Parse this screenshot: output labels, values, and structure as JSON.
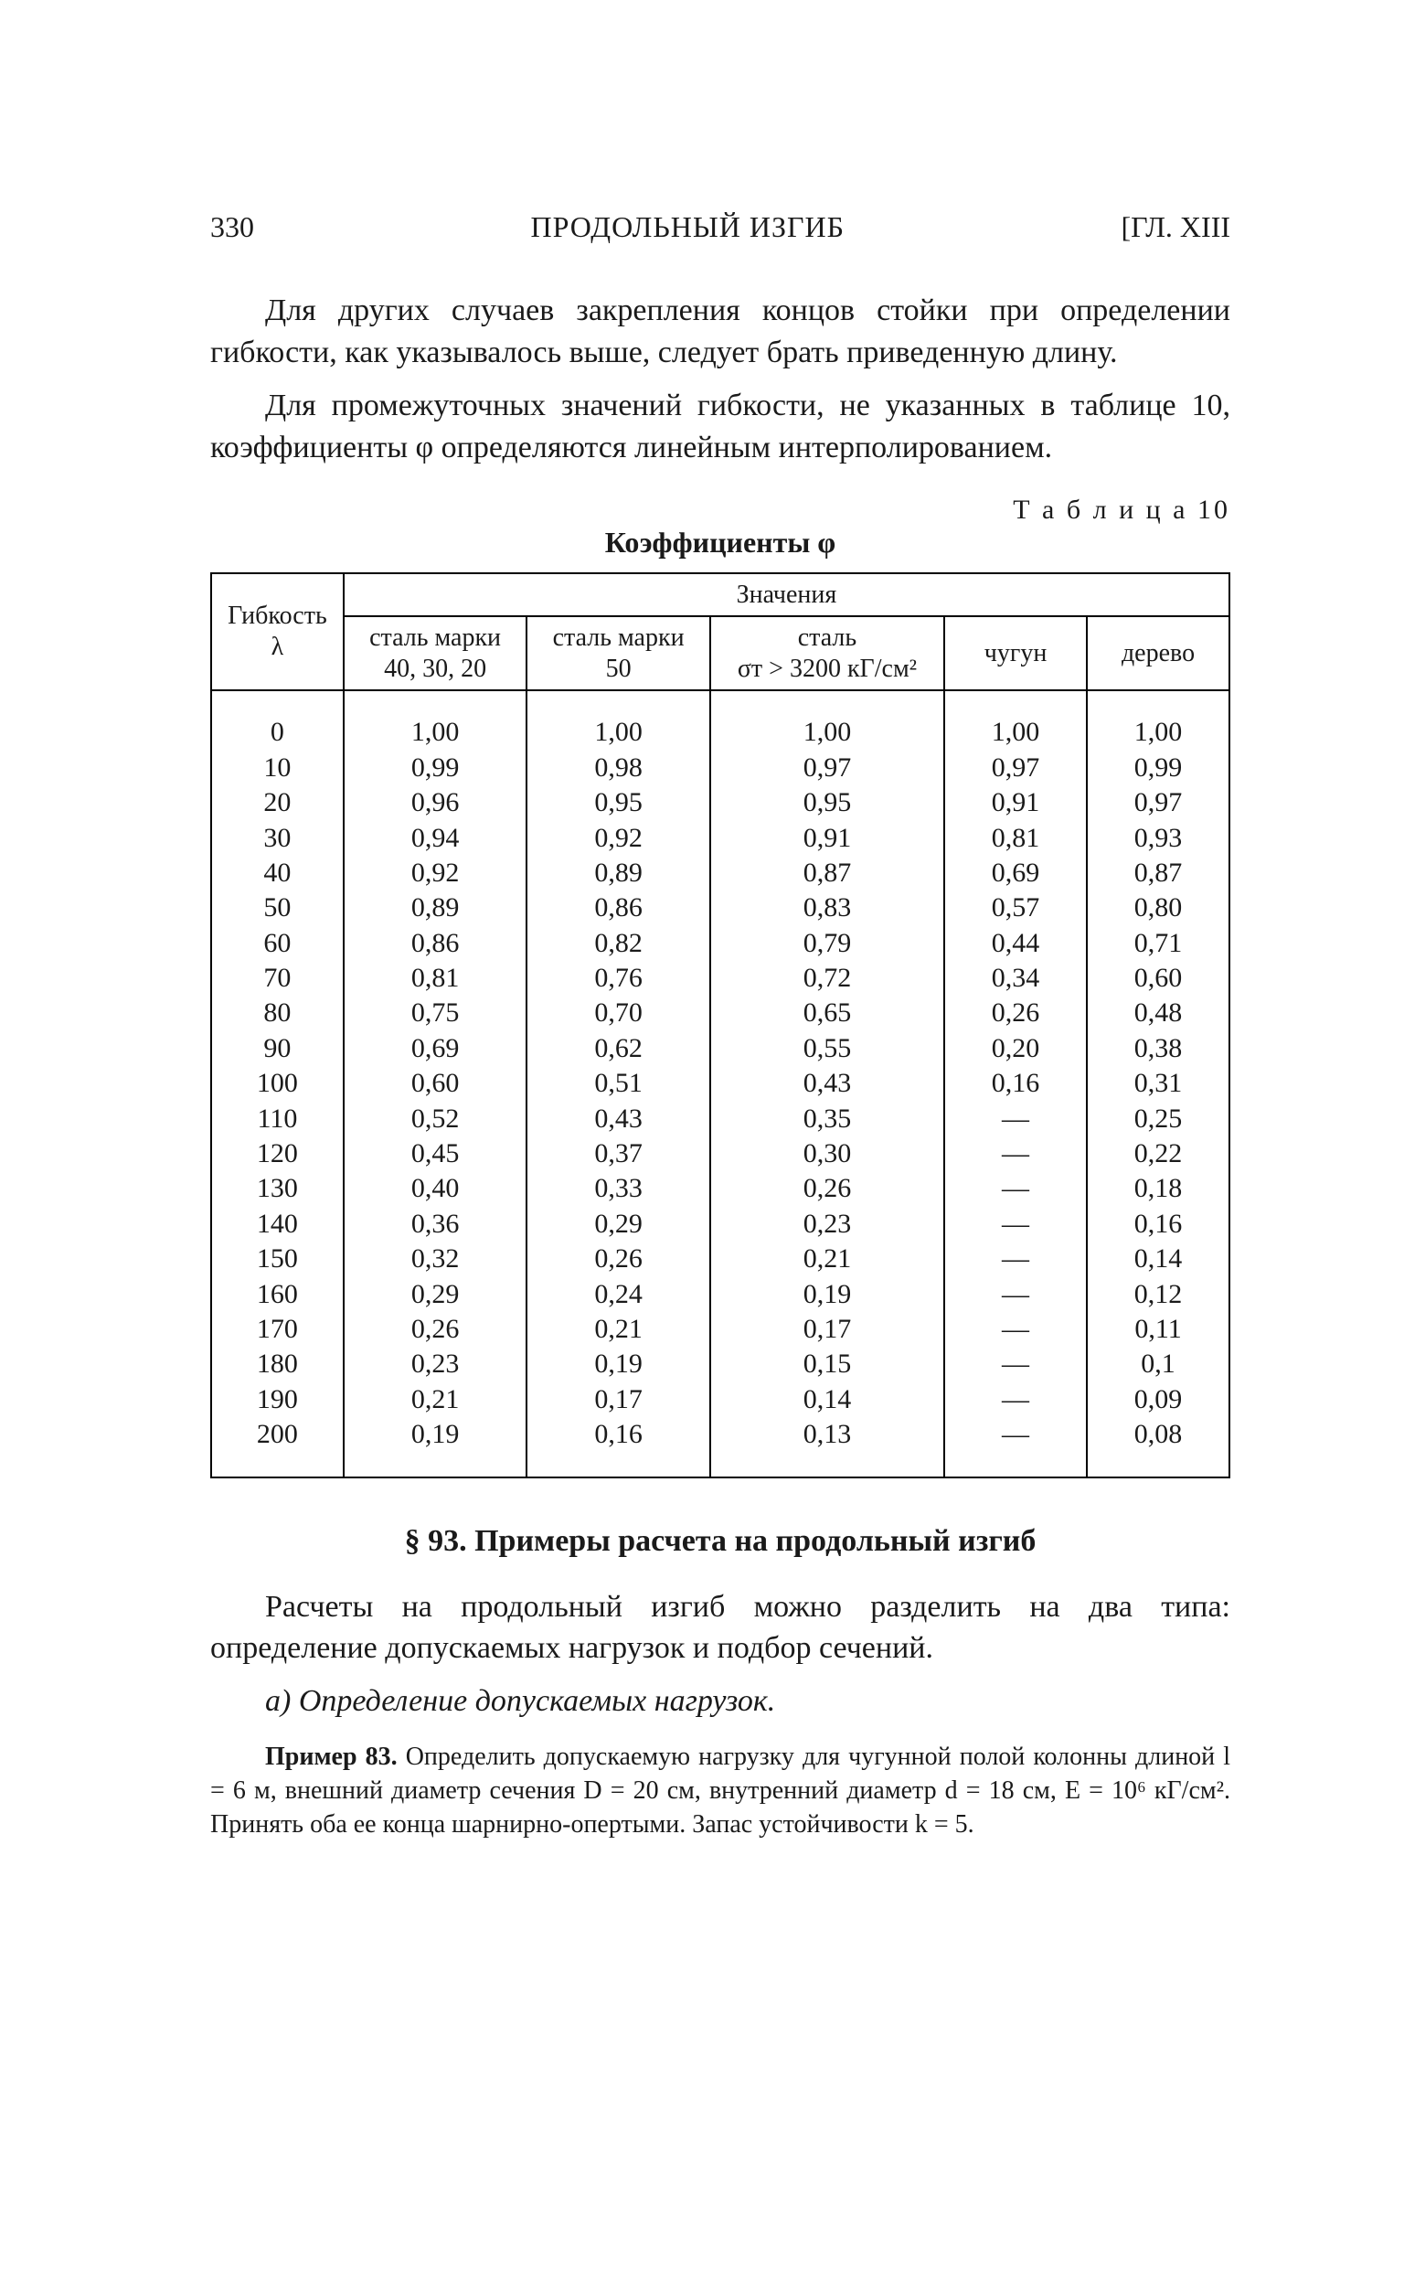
{
  "page": {
    "number": "330",
    "running_title": "ПРОДОЛЬНЫЙ ИЗГИБ",
    "chapter_mark": "[ГЛ. XIII"
  },
  "paragraphs": {
    "p1": "Для других случаев закрепления концов стойки при определении гибкости, как указывалось выше, следует брать приведенную длину.",
    "p2": "Для промежуточных значений гибкости, не указанных в таблице 10, коэффициенты φ определяются линейным интерполированием."
  },
  "table": {
    "label": "Т а б л и ц а 10",
    "caption": "Коэффициенты φ",
    "header_top": "Значения",
    "header_left": "Гибкость\nλ",
    "columns": [
      "сталь марки\n40, 30, 20",
      "сталь марки\n50",
      "сталь\nσт > 3200 кГ/см²",
      "чугун",
      "дерево"
    ],
    "lambda": [
      "0",
      "10",
      "20",
      "30",
      "40",
      "50",
      "60",
      "70",
      "80",
      "90",
      "100",
      "110",
      "120",
      "130",
      "140",
      "150",
      "160",
      "170",
      "180",
      "190",
      "200"
    ],
    "steel_40_30_20": [
      "1,00",
      "0,99",
      "0,96",
      "0,94",
      "0,92",
      "0,89",
      "0,86",
      "0,81",
      "0,75",
      "0,69",
      "0,60",
      "0,52",
      "0,45",
      "0,40",
      "0,36",
      "0,32",
      "0,29",
      "0,26",
      "0,23",
      "0,21",
      "0,19"
    ],
    "steel_50": [
      "1,00",
      "0,98",
      "0,95",
      "0,92",
      "0,89",
      "0,86",
      "0,82",
      "0,76",
      "0,70",
      "0,62",
      "0,51",
      "0,43",
      "0,37",
      "0,33",
      "0,29",
      "0,26",
      "0,24",
      "0,21",
      "0,19",
      "0,17",
      "0,16"
    ],
    "steel_gt3200": [
      "1,00",
      "0,97",
      "0,95",
      "0,91",
      "0,87",
      "0,83",
      "0,79",
      "0,72",
      "0,65",
      "0,55",
      "0,43",
      "0,35",
      "0,30",
      "0,26",
      "0,23",
      "0,21",
      "0,19",
      "0,17",
      "0,15",
      "0,14",
      "0,13"
    ],
    "cast_iron": [
      "1,00",
      "0,97",
      "0,91",
      "0,81",
      "0,69",
      "0,57",
      "0,44",
      "0,34",
      "0,26",
      "0,20",
      "0,16",
      "—",
      "—",
      "—",
      "—",
      "—",
      "—",
      "—",
      "—",
      "—",
      "—"
    ],
    "wood": [
      "1,00",
      "0,99",
      "0,97",
      "0,93",
      "0,87",
      "0,80",
      "0,71",
      "0,60",
      "0,48",
      "0,38",
      "0,31",
      "0,25",
      "0,22",
      "0,18",
      "0,16",
      "0,14",
      "0,12",
      "0,11",
      "0,1",
      "0,09",
      "0,08"
    ]
  },
  "section": {
    "title": "§ 93. Примеры расчета на продольный изгиб",
    "p1": "Расчеты на продольный изгиб можно разделить на два типа: определение допускаемых нагрузок и подбор сечений.",
    "sub_a": "а) Определение допускаемых нагрузок.",
    "example_label": "Пример 83.",
    "example_body": " Определить допускаемую нагрузку для чугунной полой колонны длиной l = 6 м, внешний диаметр сечения D = 20 см, внутренний диаметр d = 18 см, E = 10⁶ кГ/см². Принять оба ее конца шарнирно-опертыми. Запас устойчивости k = 5."
  }
}
